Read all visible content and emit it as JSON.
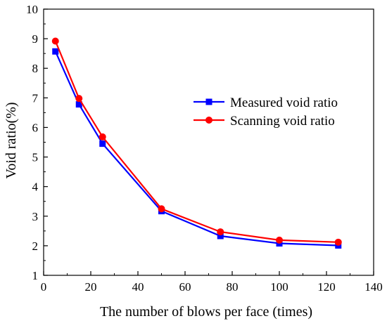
{
  "chart_data": {
    "type": "line",
    "xlabel": "The number of blows per face (times)",
    "ylabel": "Void ratio(%)",
    "xlim": [
      0,
      140
    ],
    "ylim": [
      1,
      10
    ],
    "x_ticks": [
      0,
      20,
      40,
      60,
      80,
      100,
      120,
      140
    ],
    "y_ticks": [
      1,
      2,
      3,
      4,
      5,
      6,
      7,
      8,
      9,
      10
    ],
    "grid": false,
    "legend_position": "center-right",
    "series": [
      {
        "name": "Measured void ratio",
        "color": "#0000ff",
        "marker": "square",
        "x": [
          5,
          15,
          25,
          50,
          75,
          100,
          125
        ],
        "y": [
          8.57,
          6.78,
          5.45,
          3.17,
          2.33,
          2.08,
          2.01
        ]
      },
      {
        "name": "Scanning void ratio",
        "color": "#ff0000",
        "marker": "circle",
        "x": [
          5,
          15,
          25,
          50,
          75,
          100,
          125
        ],
        "y": [
          8.92,
          6.98,
          5.68,
          3.25,
          2.47,
          2.19,
          2.12
        ]
      }
    ]
  }
}
